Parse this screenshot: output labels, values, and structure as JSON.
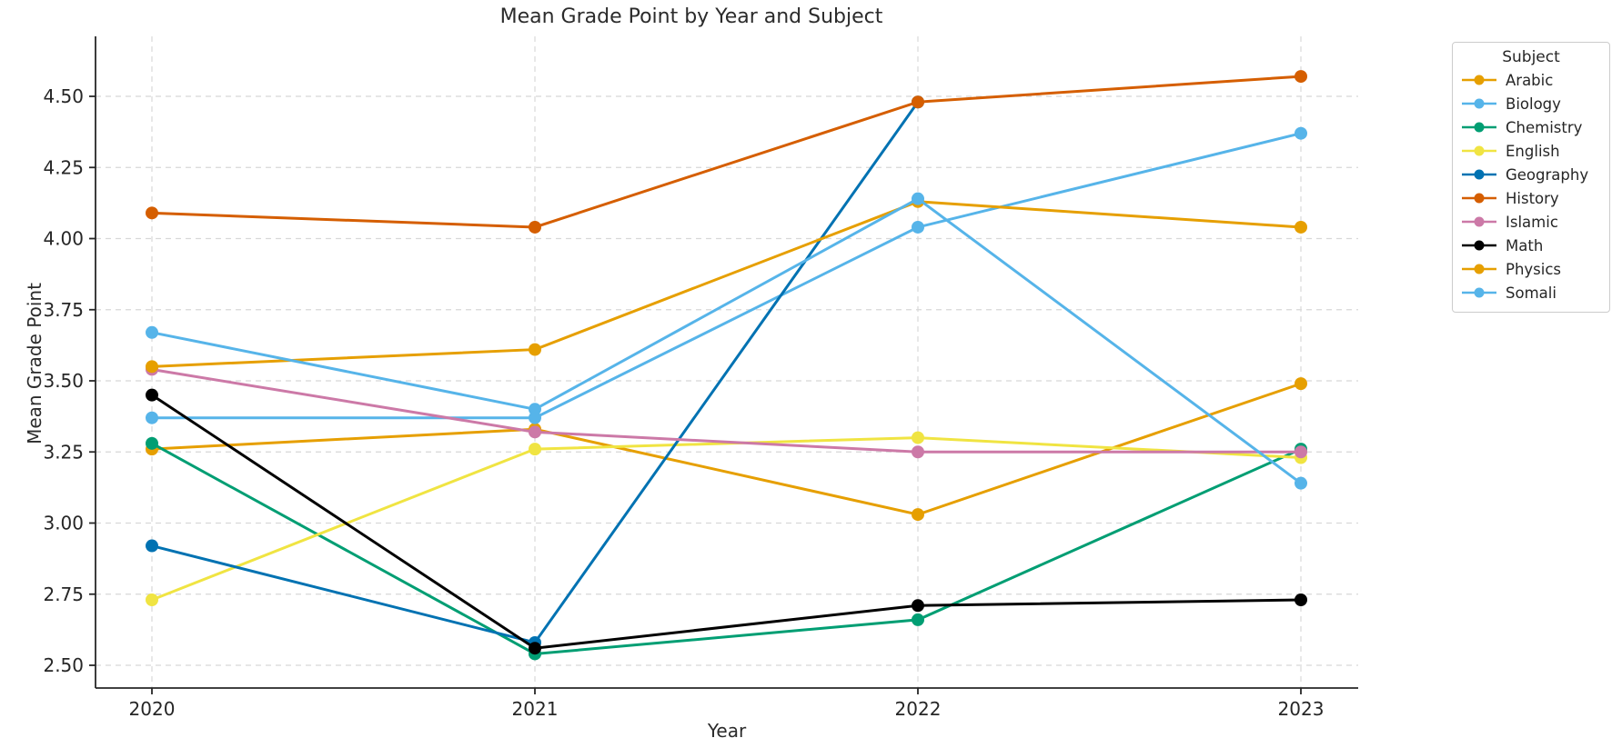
{
  "chart_data": {
    "type": "line",
    "title": "Mean Grade Point by Year and Subject",
    "xlabel": "Year",
    "ylabel": "Mean Grade Point",
    "categories": [
      "2020",
      "2021",
      "2022",
      "2023"
    ],
    "y_ticks": [
      2.5,
      2.75,
      3.0,
      3.25,
      3.5,
      3.75,
      4.0,
      4.25,
      4.5
    ],
    "y_tick_labels": [
      "2.50",
      "2.75",
      "3.00",
      "3.25",
      "3.50",
      "3.75",
      "4.00",
      "4.25",
      "4.50"
    ],
    "ylim": [
      2.42,
      4.71
    ],
    "grid": true,
    "grid_style": "dashed",
    "legend": {
      "title": "Subject",
      "position": "upper-right-outside"
    },
    "series": [
      {
        "name": "Arabic",
        "color": "#E69F00",
        "values": [
          3.26,
          3.33,
          3.03,
          3.49
        ]
      },
      {
        "name": "Biology",
        "color": "#56B4E9",
        "values": [
          3.37,
          3.37,
          4.04,
          4.37
        ]
      },
      {
        "name": "Chemistry",
        "color": "#009E73",
        "values": [
          3.28,
          2.54,
          2.66,
          3.26
        ]
      },
      {
        "name": "English",
        "color": "#F0E442",
        "values": [
          2.73,
          3.26,
          3.3,
          3.23
        ]
      },
      {
        "name": "Geography",
        "color": "#0072B2",
        "values": [
          2.92,
          2.58,
          4.48,
          null
        ]
      },
      {
        "name": "History",
        "color": "#D55E00",
        "values": [
          4.09,
          4.04,
          4.48,
          4.57
        ]
      },
      {
        "name": "Islamic",
        "color": "#CC79A7",
        "values": [
          3.54,
          3.32,
          3.25,
          3.25
        ]
      },
      {
        "name": "Math",
        "color": "#000000",
        "values": [
          3.45,
          2.56,
          2.71,
          2.73
        ]
      },
      {
        "name": "Physics",
        "color": "#E69F00",
        "values": [
          3.55,
          3.61,
          4.13,
          4.04
        ]
      },
      {
        "name": "Somali",
        "color": "#56B4E9",
        "values": [
          3.67,
          3.4,
          4.14,
          3.14
        ]
      }
    ],
    "axis_color": "#262626",
    "gridline_color": "#d8d8d8",
    "background_color": "#ffffff"
  }
}
